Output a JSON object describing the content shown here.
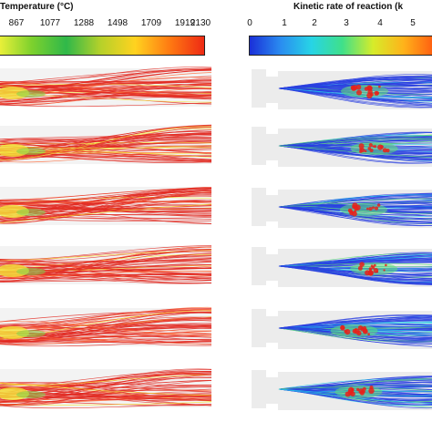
{
  "legends": {
    "temperature": {
      "title": "Temperature (°C)",
      "ticks": [
        "867",
        "1077",
        "1288",
        "1498",
        "1709",
        "1919",
        "2130"
      ],
      "colors": [
        "#f2f23a",
        "#7dd12d",
        "#2fb84a",
        "#b6d12a",
        "#ffd21f",
        "#ff7a12",
        "#ee2a14"
      ]
    },
    "kinetic_rate": {
      "title": "Kinetic rate of reaction (k",
      "ticks": [
        "0",
        "1",
        "2",
        "3",
        "4",
        "5"
      ],
      "colors": [
        "#1a2fd8",
        "#2a8cf0",
        "#27d4e6",
        "#3fe08a",
        "#d6ec2a",
        "#ffb21a",
        "#ff5a10"
      ]
    }
  },
  "colors": {
    "temperature_main": "#e22a22",
    "temperature_hot": "#ff6a3a",
    "temperature_cool": "#f4e63a",
    "temperature_mid": "#7fd34a",
    "kinetic_main": "#2a3fe0",
    "kinetic_light": "#27c9e8",
    "kinetic_green": "#5fe07a",
    "kinetic_hot": "#e8211a",
    "chamber": "#ececec"
  },
  "panel_rows": 6
}
